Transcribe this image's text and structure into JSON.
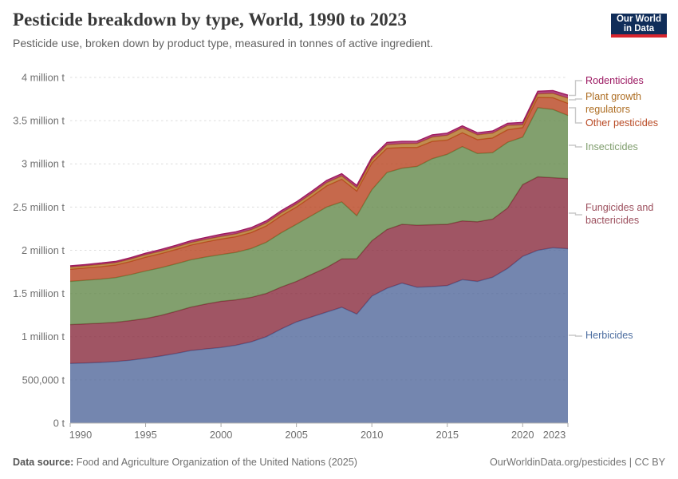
{
  "header": {
    "title": "Pesticide breakdown by type, World, 1990 to 2023",
    "subtitle": "Pesticide use, broken down by product type, measured in tonnes of active ingredient."
  },
  "logo": {
    "line1": "Our World",
    "line2": "in Data",
    "bg_color": "#102d59",
    "stripe_color": "#d8252e"
  },
  "footer": {
    "source_label": "Data source:",
    "source_text": " Food and Agriculture Organization of the United Nations (2025)",
    "credit": "OurWorldinData.org/pesticides | CC BY"
  },
  "chart_data": {
    "type": "area",
    "stacked": true,
    "title": "Pesticide breakdown by type, World, 1990 to 2023",
    "unit": "tonnes of active ingredient",
    "xlabel": "",
    "ylabel": "",
    "ylim": [
      0,
      4000000
    ],
    "grid": "dashed-horizontal",
    "legend_position": "right",
    "x": [
      1990,
      1991,
      1992,
      1993,
      1994,
      1995,
      1996,
      1997,
      1998,
      1999,
      2000,
      2001,
      2002,
      2003,
      2004,
      2005,
      2006,
      2007,
      2008,
      2009,
      2010,
      2011,
      2012,
      2013,
      2014,
      2015,
      2016,
      2017,
      2018,
      2019,
      2020,
      2021,
      2022,
      2023
    ],
    "xticks": [
      1990,
      1995,
      2000,
      2005,
      2010,
      2015,
      2020,
      2023
    ],
    "yticks": [
      {
        "v": 0,
        "label": "0 t"
      },
      {
        "v": 500000,
        "label": "500,000 t"
      },
      {
        "v": 1000000,
        "label": "1 million t"
      },
      {
        "v": 1500000,
        "label": "1.5 million t"
      },
      {
        "v": 2000000,
        "label": "2 million t"
      },
      {
        "v": 2500000,
        "label": "2.5 million t"
      },
      {
        "v": 3000000,
        "label": "3 million t"
      },
      {
        "v": 3500000,
        "label": "3.5 million t"
      },
      {
        "v": 4000000,
        "label": "4 million t"
      }
    ],
    "series": [
      {
        "name": "Herbicides",
        "fill_color": "#51689b",
        "label_color": "#4c6da0",
        "values": [
          690000,
          696000,
          702000,
          712000,
          728000,
          750000,
          776000,
          806000,
          840000,
          858000,
          875000,
          902000,
          940000,
          1000000,
          1090000,
          1170000,
          1228000,
          1285000,
          1340000,
          1262000,
          1470000,
          1560000,
          1620000,
          1572000,
          1580000,
          1592000,
          1660000,
          1640000,
          1688000,
          1790000,
          1930000,
          2000000,
          2030000,
          2018000
        ]
      },
      {
        "name": "Fungicides and bactericides",
        "fill_color": "#882b3d",
        "label_color": "#9c4f5d",
        "values": [
          450000,
          452000,
          454000,
          455000,
          458000,
          460000,
          470000,
          486000,
          502000,
          520000,
          535000,
          524000,
          515000,
          500000,
          485000,
          470000,
          492000,
          515000,
          560000,
          640000,
          640000,
          680000,
          680000,
          718000,
          716000,
          708000,
          680000,
          690000,
          672000,
          700000,
          830000,
          850000,
          810000,
          812000
        ]
      },
      {
        "name": "Insecticides",
        "fill_color": "#63884a",
        "label_color": "#7f9d6d",
        "values": [
          500000,
          505000,
          510000,
          516000,
          532000,
          550000,
          552000,
          550000,
          548000,
          544000,
          540000,
          550000,
          565000,
          592000,
          628000,
          660000,
          680000,
          700000,
          660000,
          498000,
          590000,
          660000,
          650000,
          680000,
          764000,
          810000,
          860000,
          790000,
          770000,
          760000,
          550000,
          800000,
          790000,
          730000
        ]
      },
      {
        "name": "Other pesticides",
        "fill_color": "#b8431f",
        "label_color": "#b94a24",
        "values": [
          140000,
          142000,
          144000,
          146000,
          152000,
          160000,
          163000,
          166000,
          170000,
          175000,
          180000,
          182000,
          185000,
          190000,
          196000,
          200000,
          220000,
          245000,
          262000,
          285000,
          310000,
          280000,
          240000,
          220000,
          200000,
          165000,
          160000,
          160000,
          170000,
          145000,
          110000,
          120000,
          135000,
          140000
        ]
      },
      {
        "name": "Plant growth regulators",
        "fill_color": "#b26f24",
        "label_color": "#ad6d22",
        "values": [
          25000,
          25000,
          26000,
          26000,
          27000,
          28000,
          28000,
          29000,
          29000,
          30000,
          30000,
          31000,
          32000,
          33000,
          34000,
          35000,
          36000,
          37000,
          38000,
          39000,
          38000,
          40000,
          42000,
          45000,
          50000,
          55000,
          56000,
          56000,
          55000,
          50000,
          32000,
          40000,
          50000,
          60000
        ]
      },
      {
        "name": "Rodenticides",
        "fill_color": "#9e1a5e",
        "label_color": "#9c1962",
        "values": [
          15000,
          15000,
          16000,
          16000,
          17000,
          18000,
          19000,
          20000,
          21000,
          22000,
          25000,
          25000,
          25000,
          25000,
          25000,
          25000,
          25000,
          26000,
          26000,
          27000,
          28000,
          28000,
          28000,
          27000,
          26000,
          25000,
          24000,
          24000,
          25000,
          25000,
          28000,
          30000,
          33000,
          35000
        ]
      }
    ]
  }
}
